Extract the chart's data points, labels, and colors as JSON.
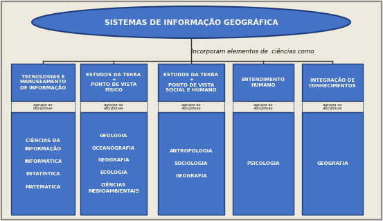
{
  "background_color": "#ede9dc",
  "border_color": "#888888",
  "ellipse_fill": "#4472c4",
  "ellipse_stroke": "#1f3d7a",
  "ellipse_text": "SISTEMAS DE INFORMAÇÃO GEOGRÁFICA",
  "ellipse_text_color": "#ffffff",
  "connector_label": "Incorporam elementos de  ciências como",
  "box_fill": "#4472c4",
  "box_fill_light": "#6b93d6",
  "box_stroke": "#1f3d7a",
  "box_text_color": "#ffffff",
  "sub_label": "agrupa as\ndisciplinas",
  "top_boxes": [
    "TECNOLOGIAS E\nMANUSEAMENTO\nDE INFORMAÇÃO",
    "ESTUDOS DA TERRA\n+\nPONTO DE VISTA\nFÍSICO",
    "ESTUDOS DA TERRA\n+\nPONTO DE VISTA\nSOCIAL E HUMANO",
    "ENTENDIMENTO\nHUMANO",
    "INTEGRAÇÃO DE\nCONHECIMENTOS"
  ],
  "bottom_boxes": [
    "CIÊNCIAS DA\nINFORMAÇÃO\n\nINFORMÁTICA\n\nESTATÍSTICA\n\nMATEMÁTICA",
    "GEOLOGIA\n\nOCEANOGRAFIA\n\nGEOGRAFIA\n\nECOLOGIA\n\nCIÊNCIAS\nMEDIOAMBIENTAIS",
    "ANTROPOLOGIA\n\nSOCIOLOGIA\n\nGEOGRAFIA",
    "PSICOLOGIA",
    "GEOGRAFIA"
  ],
  "fig_width": 5.53,
  "fig_height": 3.19,
  "dpi": 100
}
